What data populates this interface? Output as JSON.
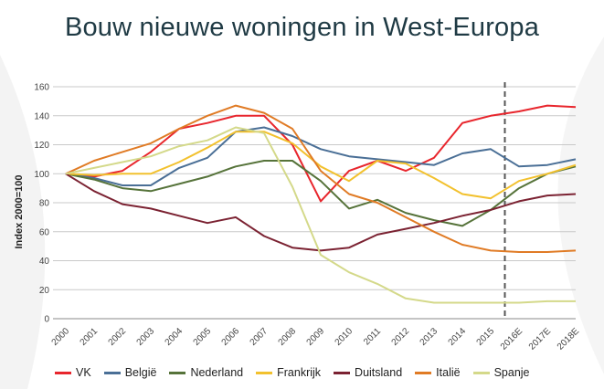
{
  "colors": {
    "title": "#1f3a44",
    "grid": "#c9c9c9",
    "axis": "#8a8a8a",
    "forecast_line": "#555555"
  },
  "chart_data": {
    "type": "line",
    "title": "Bouw nieuwe woningen in West-Europa",
    "ylabel": "Index 2000=100",
    "xlabel": "",
    "ylim": [
      0,
      160
    ],
    "y_ticks": [
      0,
      20,
      40,
      60,
      80,
      100,
      120,
      140,
      160
    ],
    "grid": true,
    "legend_position": "bottom",
    "forecast_divider_at": "2016E",
    "categories": [
      "2000",
      "2001",
      "2002",
      "2003",
      "2004",
      "2005",
      "2006",
      "2007",
      "2008",
      "2009",
      "2010",
      "2011",
      "2012",
      "2013",
      "2014",
      "2015",
      "2016E",
      "2017E",
      "2018E"
    ],
    "series": [
      {
        "name": "VK",
        "color": "#e8262d",
        "values": [
          100,
          98,
          102,
          115,
          131,
          135,
          140,
          140,
          120,
          81,
          102,
          109,
          102,
          111,
          135,
          140,
          143,
          147,
          146
        ]
      },
      {
        "name": "België",
        "color": "#4a6f96",
        "values": [
          100,
          97,
          92,
          92,
          104,
          111,
          129,
          132,
          126,
          117,
          112,
          110,
          108,
          106,
          114,
          117,
          105,
          106,
          110
        ]
      },
      {
        "name": "Nederland",
        "color": "#56733a",
        "values": [
          100,
          96,
          90,
          88,
          93,
          98,
          105,
          109,
          109,
          95,
          76,
          82,
          73,
          68,
          64,
          75,
          90,
          100,
          105
        ]
      },
      {
        "name": "Frankrijk",
        "color": "#f2c12e",
        "values": [
          100,
          99,
          100,
          100,
          108,
          118,
          129,
          129,
          121,
          105,
          95,
          109,
          107,
          97,
          86,
          83,
          95,
          100,
          106
        ]
      },
      {
        "name": "Duitsland",
        "color": "#7b2232",
        "values": [
          100,
          88,
          79,
          76,
          71,
          66,
          70,
          57,
          49,
          47,
          49,
          58,
          62,
          66,
          71,
          75,
          81,
          85,
          86
        ]
      },
      {
        "name": "Italië",
        "color": "#e07b25",
        "values": [
          100,
          109,
          115,
          121,
          131,
          140,
          147,
          142,
          131,
          102,
          86,
          80,
          70,
          60,
          51,
          47,
          46,
          46,
          47
        ]
      },
      {
        "name": "Spanje",
        "color": "#d4d98a",
        "values": [
          100,
          104,
          108,
          112,
          119,
          123,
          132,
          128,
          91,
          44,
          32,
          24,
          14,
          11,
          11,
          11,
          11,
          12,
          12
        ]
      }
    ]
  }
}
